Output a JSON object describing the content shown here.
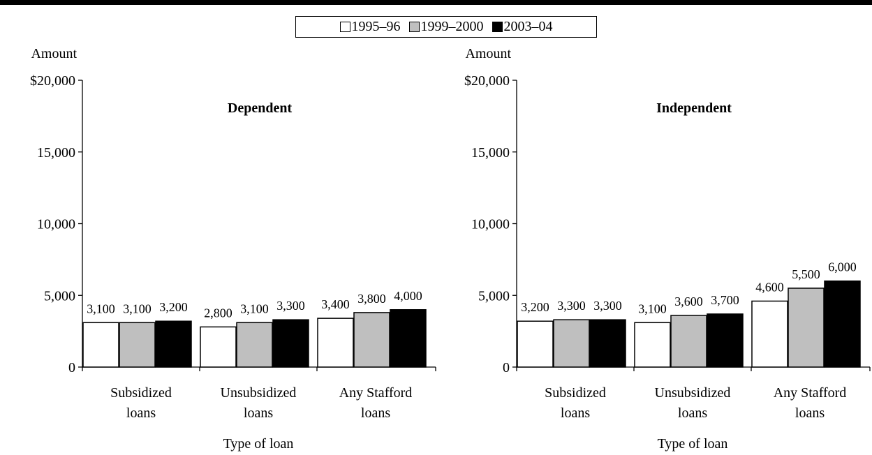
{
  "legend": {
    "items": [
      {
        "label": "1995–96",
        "color": "#ffffff"
      },
      {
        "label": "1999–2000",
        "color": "#bfbfbf"
      },
      {
        "label": "2003–04",
        "color": "#000000"
      }
    ]
  },
  "chart_data": [
    {
      "type": "bar",
      "title": "Dependent",
      "ylabel": "Amount",
      "xlabel": "Type of loan",
      "ylim": [
        0,
        20000
      ],
      "yticks": [
        "0",
        "5,000",
        "10,000",
        "15,000",
        "$20,000"
      ],
      "categories": [
        [
          "Subsidized",
          "loans"
        ],
        [
          "Unsubsidized",
          "loans"
        ],
        [
          "Any Stafford",
          "loans"
        ]
      ],
      "series": [
        {
          "name": "1995–96",
          "values": [
            3100,
            2800,
            3400
          ],
          "labels": [
            "3,100",
            "2,800",
            "3,400"
          ]
        },
        {
          "name": "1999–2000",
          "values": [
            3100,
            3100,
            3800
          ],
          "labels": [
            "3,100",
            "3,100",
            "3,800"
          ]
        },
        {
          "name": "2003–04",
          "values": [
            3200,
            3300,
            4000
          ],
          "labels": [
            "3,200",
            "3,300",
            "4,000"
          ]
        }
      ],
      "grid": false,
      "legend": "top-center"
    },
    {
      "type": "bar",
      "title": "Independent",
      "ylabel": "Amount",
      "xlabel": "Type of loan",
      "ylim": [
        0,
        20000
      ],
      "yticks": [
        "0",
        "5,000",
        "10,000",
        "15,000",
        "$20,000"
      ],
      "categories": [
        [
          "Subsidized",
          "loans"
        ],
        [
          "Unsubsidized",
          "loans"
        ],
        [
          "Any Stafford",
          "loans"
        ]
      ],
      "series": [
        {
          "name": "1995–96",
          "values": [
            3200,
            3100,
            4600
          ],
          "labels": [
            "3,200",
            "3,100",
            "4,600"
          ]
        },
        {
          "name": "1999–2000",
          "values": [
            3300,
            3600,
            5500
          ],
          "labels": [
            "3,300",
            "3,600",
            "5,500"
          ]
        },
        {
          "name": "2003–04",
          "values": [
            3300,
            3700,
            6000
          ],
          "labels": [
            "3,300",
            "3,700",
            "6,000"
          ]
        }
      ],
      "grid": false,
      "legend": "top-center"
    }
  ]
}
